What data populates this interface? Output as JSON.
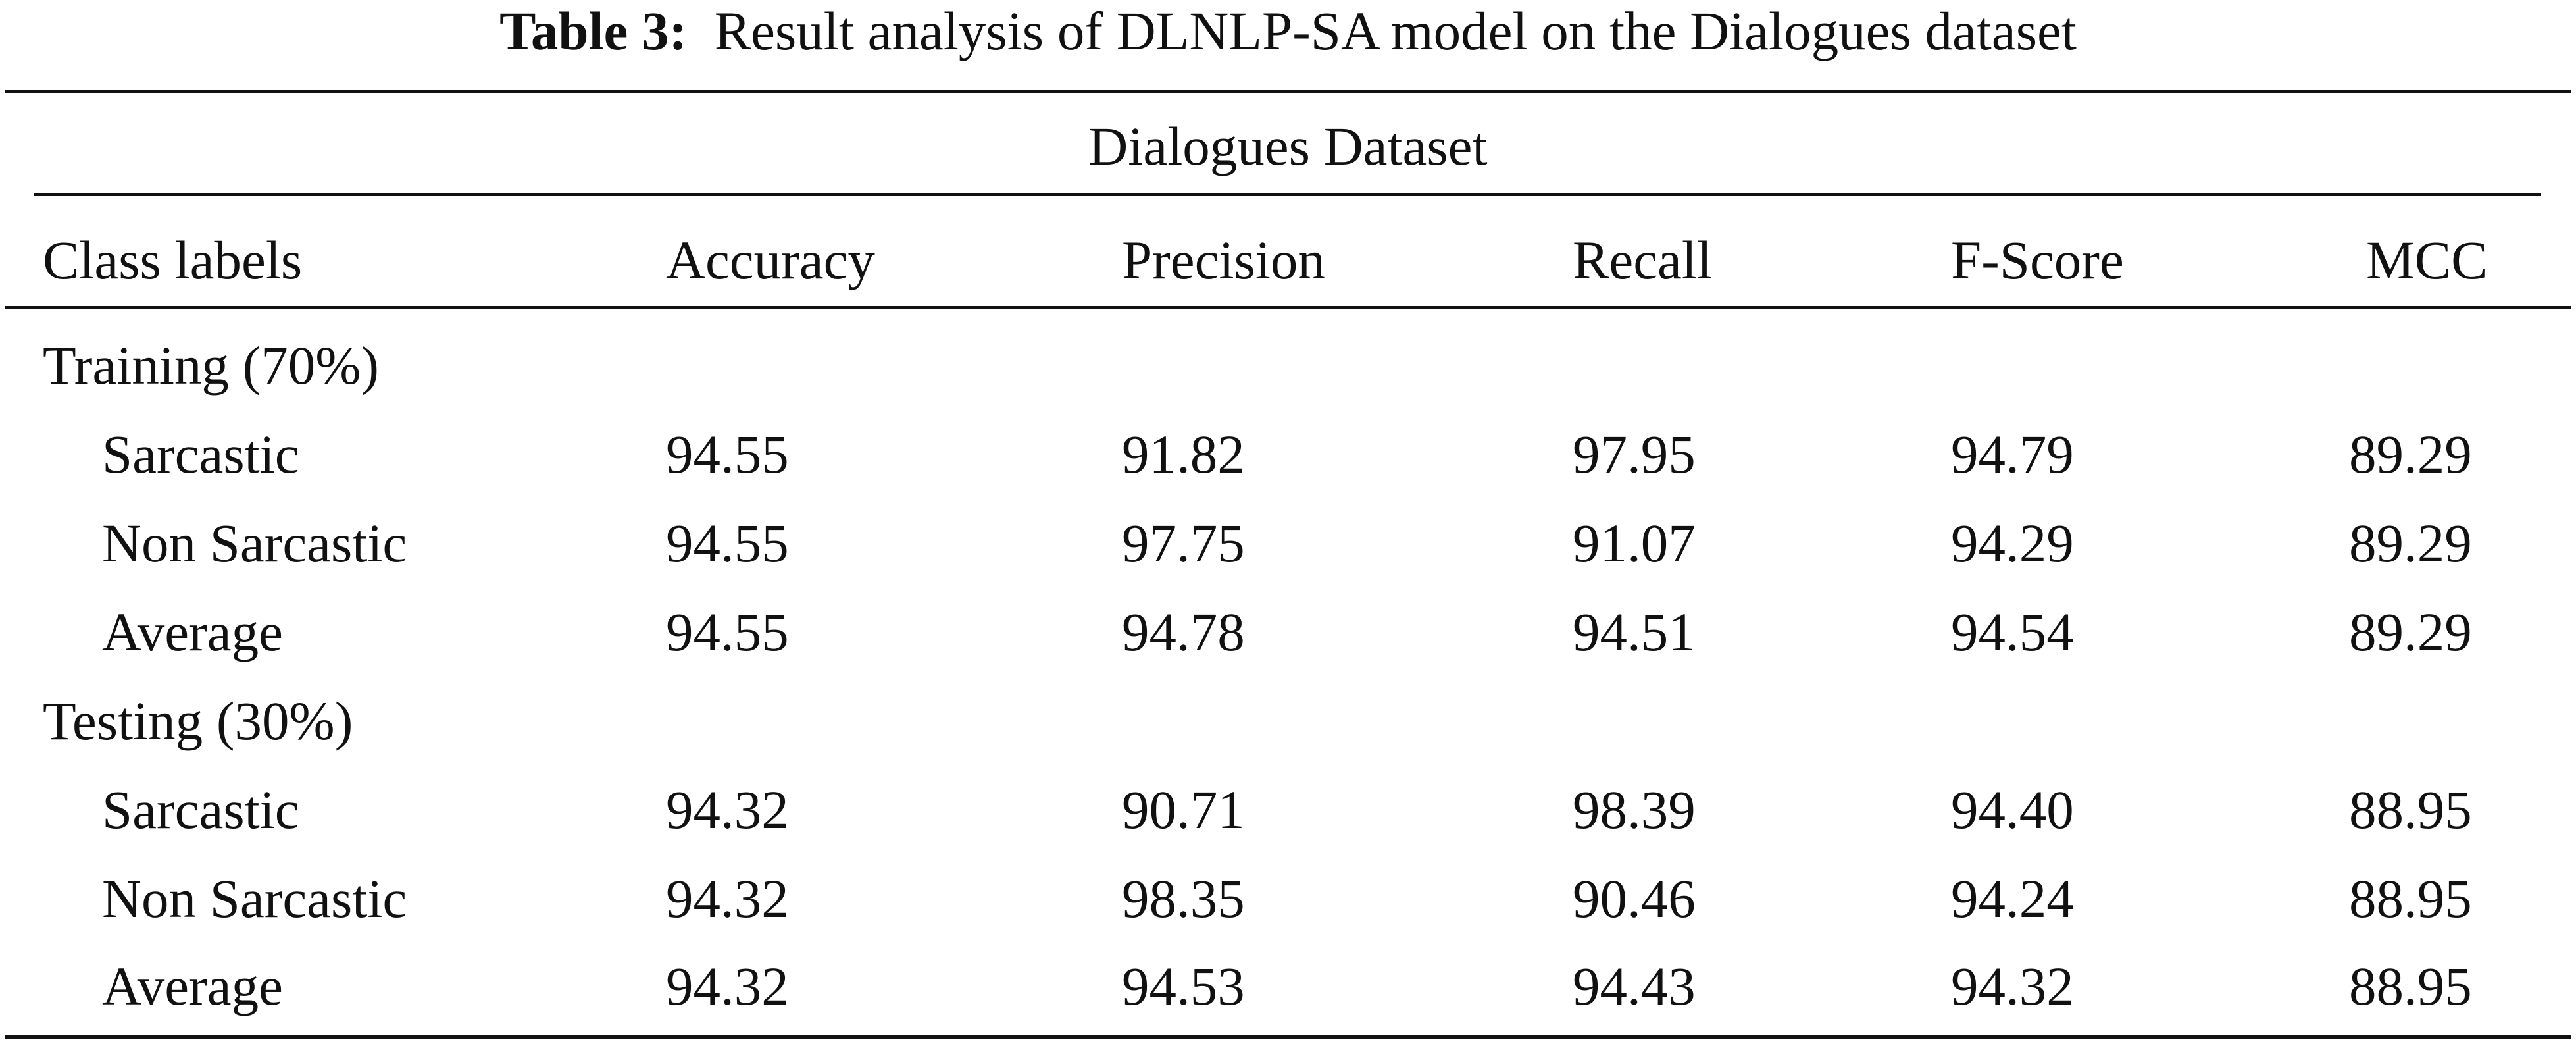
{
  "caption": {
    "label": "Table 3:",
    "text": "Result analysis of DLNLP-SA model on the Dialogues dataset"
  },
  "group_header": "Dialogues Dataset",
  "columns": [
    "Class labels",
    "Accuracy",
    "Precision",
    "Recall",
    "F-Score",
    "MCC"
  ],
  "sections": [
    {
      "title": "Training (70%)",
      "rows": [
        {
          "label": "Sarcastic",
          "values": [
            "94.55",
            "91.82",
            "97.95",
            "94.79",
            "89.29"
          ]
        },
        {
          "label": "Non Sarcastic",
          "values": [
            "94.55",
            "97.75",
            "91.07",
            "94.29",
            "89.29"
          ]
        },
        {
          "label": "Average",
          "values": [
            "94.55",
            "94.78",
            "94.51",
            "94.54",
            "89.29"
          ]
        }
      ]
    },
    {
      "title": "Testing (30%)",
      "rows": [
        {
          "label": "Sarcastic",
          "values": [
            "94.32",
            "90.71",
            "98.39",
            "94.40",
            "88.95"
          ]
        },
        {
          "label": "Non Sarcastic",
          "values": [
            "94.32",
            "98.35",
            "90.46",
            "94.24",
            "88.95"
          ]
        },
        {
          "label": "Average",
          "values": [
            "94.32",
            "94.53",
            "94.43",
            "94.32",
            "88.95"
          ]
        }
      ]
    }
  ]
}
